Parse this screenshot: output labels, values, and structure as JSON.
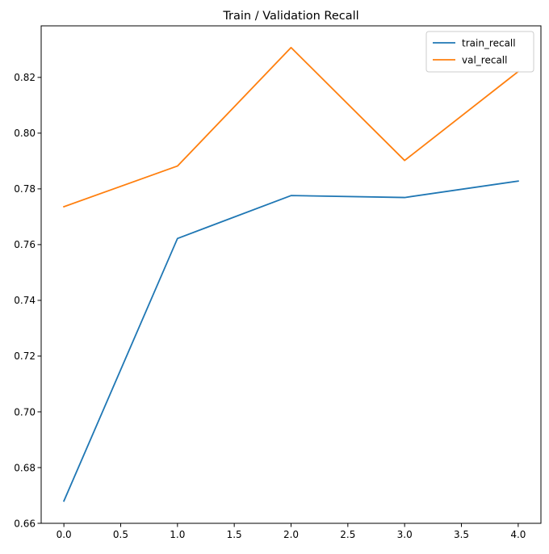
{
  "chart_data": {
    "type": "line",
    "title": "Train / Validation Recall",
    "xlabel": "",
    "ylabel": "",
    "x": [
      0,
      1,
      2,
      3,
      4
    ],
    "xlim": [
      -0.2,
      4.2
    ],
    "ylim": [
      0.66,
      0.8385
    ],
    "xticks": [
      0.0,
      0.5,
      1.0,
      1.5,
      2.0,
      2.5,
      3.0,
      3.5,
      4.0
    ],
    "xtick_labels": [
      "0.0",
      "0.5",
      "1.0",
      "1.5",
      "2.0",
      "2.5",
      "3.0",
      "3.5",
      "4.0"
    ],
    "yticks": [
      0.66,
      0.68,
      0.7,
      0.72,
      0.74,
      0.76,
      0.78,
      0.8,
      0.82
    ],
    "ytick_labels": [
      "0.66",
      "0.68",
      "0.70",
      "0.72",
      "0.74",
      "0.76",
      "0.78",
      "0.80",
      "0.82"
    ],
    "grid": false,
    "legend_position": "top-right",
    "series": [
      {
        "name": "train_recall",
        "color": "#1f77b4",
        "values": [
          0.668,
          0.7622,
          0.7776,
          0.7769,
          0.7828
        ]
      },
      {
        "name": "val_recall",
        "color": "#ff7f0e",
        "values": [
          0.7736,
          0.7882,
          0.8307,
          0.7902,
          0.8221
        ]
      }
    ]
  }
}
